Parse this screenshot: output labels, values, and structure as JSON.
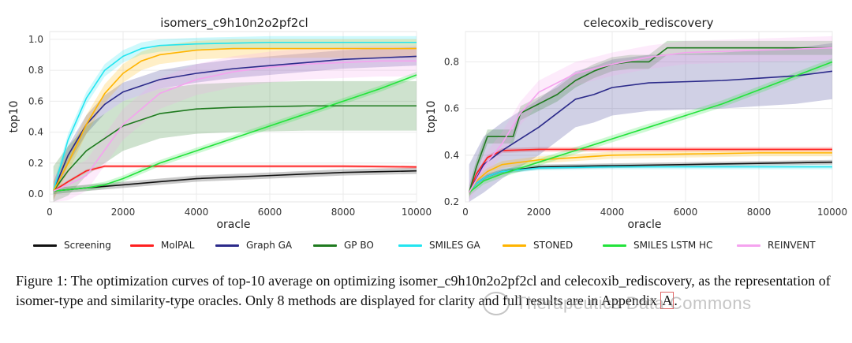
{
  "chart_data": [
    {
      "type": "line",
      "title": "isomers_c9h10n2o2pf2cl",
      "xlabel": "oracle",
      "ylabel": "top10",
      "xlim": [
        0,
        10000
      ],
      "ylim": [
        -0.05,
        1.05
      ],
      "xticks": [
        0,
        2000,
        4000,
        6000,
        8000,
        10000
      ],
      "yticks": [
        0.0,
        0.2,
        0.4,
        0.6,
        0.8,
        1.0
      ],
      "ytick_labels": [
        "0.0",
        "0.2",
        "0.4",
        "0.6",
        "0.8",
        "1.0"
      ],
      "grid": true,
      "series": [
        {
          "name": "Screening",
          "x": [
            100,
            1000,
            2000,
            3000,
            4000,
            5000,
            6000,
            7000,
            8000,
            9000,
            10000
          ],
          "y": [
            0.02,
            0.04,
            0.06,
            0.08,
            0.1,
            0.11,
            0.12,
            0.13,
            0.14,
            0.145,
            0.15
          ],
          "band": 0.02
        },
        {
          "name": "MolPAL",
          "x": [
            100,
            500,
            1000,
            1500,
            2000,
            4000,
            6000,
            8000,
            10000
          ],
          "y": [
            0.02,
            0.08,
            0.15,
            0.18,
            0.18,
            0.18,
            0.18,
            0.18,
            0.175
          ],
          "band": 0.01
        },
        {
          "name": "Graph GA",
          "x": [
            100,
            500,
            1000,
            1500,
            2000,
            3000,
            4000,
            5000,
            6000,
            7000,
            8000,
            9000,
            10000
          ],
          "y": [
            0.02,
            0.25,
            0.45,
            0.58,
            0.66,
            0.74,
            0.78,
            0.81,
            0.83,
            0.85,
            0.87,
            0.88,
            0.89
          ],
          "band": 0.06
        },
        {
          "name": "GP BO",
          "x": [
            100,
            500,
            1000,
            1500,
            2000,
            3000,
            4000,
            5000,
            6000,
            7000,
            8000,
            9000,
            10000
          ],
          "y": [
            0.02,
            0.15,
            0.28,
            0.36,
            0.44,
            0.52,
            0.55,
            0.56,
            0.565,
            0.57,
            0.57,
            0.57,
            0.57
          ],
          "band": 0.16
        },
        {
          "name": "SMILES GA",
          "x": [
            100,
            500,
            1000,
            1500,
            2000,
            2500,
            3000,
            4000,
            5000,
            6000,
            8000,
            10000
          ],
          "y": [
            0.02,
            0.35,
            0.62,
            0.8,
            0.89,
            0.94,
            0.96,
            0.97,
            0.975,
            0.98,
            0.98,
            0.98
          ],
          "band": 0.04
        },
        {
          "name": "STONED",
          "x": [
            100,
            500,
            1000,
            1500,
            2000,
            2500,
            3000,
            4000,
            5000,
            6000,
            8000,
            10000
          ],
          "y": [
            0.02,
            0.2,
            0.45,
            0.65,
            0.78,
            0.86,
            0.9,
            0.93,
            0.94,
            0.94,
            0.94,
            0.94
          ],
          "band": 0.06
        },
        {
          "name": "SMILES LSTM HC",
          "x": [
            100,
            1000,
            1500,
            2000,
            3000,
            4000,
            5000,
            6000,
            7000,
            8000,
            9000,
            10000
          ],
          "y": [
            0.02,
            0.04,
            0.06,
            0.1,
            0.2,
            0.28,
            0.36,
            0.44,
            0.52,
            0.6,
            0.68,
            0.77
          ],
          "band": 0.02
        },
        {
          "name": "REINVENT",
          "x": [
            100,
            500,
            1000,
            2000,
            3000,
            4000,
            5000,
            6000,
            7000,
            8000,
            9000,
            10000
          ],
          "y": [
            0.02,
            0.06,
            0.12,
            0.45,
            0.65,
            0.74,
            0.79,
            0.82,
            0.84,
            0.85,
            0.86,
            0.86
          ],
          "band": 0.1
        }
      ]
    },
    {
      "type": "line",
      "title": "celecoxib_rediscovery",
      "xlabel": "oracle",
      "ylabel": "top10",
      "xlim": [
        0,
        10000
      ],
      "ylim": [
        0.2,
        0.93
      ],
      "xticks": [
        0,
        2000,
        4000,
        6000,
        8000,
        10000
      ],
      "yticks": [
        0.2,
        0.4,
        0.6,
        0.8
      ],
      "ytick_labels": [
        "0.2",
        "0.4",
        "0.6",
        "0.8"
      ],
      "grid": true,
      "series": [
        {
          "name": "Screening",
          "x": [
            100,
            300,
            600,
            1000,
            2000,
            4000,
            6000,
            8000,
            10000
          ],
          "y": [
            0.24,
            0.28,
            0.31,
            0.33,
            0.35,
            0.355,
            0.36,
            0.365,
            0.37
          ],
          "band": 0.01
        },
        {
          "name": "MolPAL",
          "x": [
            100,
            300,
            600,
            1000,
            2000,
            4000,
            6000,
            8000,
            10000
          ],
          "y": [
            0.24,
            0.32,
            0.39,
            0.42,
            0.425,
            0.425,
            0.425,
            0.425,
            0.425
          ],
          "band": 0.01
        },
        {
          "name": "Graph GA",
          "x": [
            100,
            500,
            1000,
            1500,
            2000,
            2500,
            3000,
            3500,
            4000,
            5000,
            6000,
            7000,
            8000,
            9000,
            10000
          ],
          "y": [
            0.24,
            0.36,
            0.42,
            0.47,
            0.52,
            0.58,
            0.64,
            0.66,
            0.69,
            0.71,
            0.715,
            0.72,
            0.73,
            0.74,
            0.76
          ],
          "band": 0.12
        },
        {
          "name": "GP BO",
          "x": [
            100,
            300,
            600,
            1000,
            1300,
            1500,
            2000,
            2500,
            3000,
            3500,
            4000,
            4500,
            5000,
            5500,
            6000,
            8000,
            10000
          ],
          "y": [
            0.24,
            0.35,
            0.48,
            0.48,
            0.48,
            0.58,
            0.62,
            0.66,
            0.72,
            0.76,
            0.79,
            0.8,
            0.8,
            0.86,
            0.86,
            0.86,
            0.86
          ],
          "band": 0.03
        },
        {
          "name": "SMILES GA",
          "x": [
            100,
            300,
            600,
            1000,
            2000,
            4000,
            6000,
            8000,
            10000
          ],
          "y": [
            0.24,
            0.28,
            0.31,
            0.33,
            0.345,
            0.35,
            0.35,
            0.35,
            0.35
          ],
          "band": 0.01
        },
        {
          "name": "STONED",
          "x": [
            100,
            300,
            600,
            1000,
            2000,
            3000,
            4000,
            6000,
            8000,
            10000
          ],
          "y": [
            0.24,
            0.29,
            0.33,
            0.36,
            0.38,
            0.39,
            0.4,
            0.405,
            0.41,
            0.41
          ],
          "band": 0.015
        },
        {
          "name": "SMILES LSTM HC",
          "x": [
            100,
            500,
            1000,
            2000,
            3000,
            4000,
            5000,
            6000,
            7000,
            8000,
            9000,
            10000
          ],
          "y": [
            0.24,
            0.29,
            0.32,
            0.37,
            0.42,
            0.47,
            0.52,
            0.57,
            0.62,
            0.68,
            0.74,
            0.8
          ],
          "band": 0.015
        },
        {
          "name": "REINVENT",
          "x": [
            100,
            500,
            1000,
            1500,
            2000,
            3000,
            4000,
            5000,
            6000,
            8000,
            10000
          ],
          "y": [
            0.24,
            0.35,
            0.45,
            0.58,
            0.67,
            0.75,
            0.79,
            0.82,
            0.84,
            0.85,
            0.86
          ],
          "band": 0.05
        }
      ]
    }
  ],
  "legend": {
    "items": [
      {
        "name": "Screening",
        "color": "#111111"
      },
      {
        "name": "MolPAL",
        "color": "#ff2020"
      },
      {
        "name": "Graph GA",
        "color": "#2b2a8a"
      },
      {
        "name": "GP BO",
        "color": "#1f7a1f"
      },
      {
        "name": "SMILES GA",
        "color": "#22e5f0"
      },
      {
        "name": "STONED",
        "color": "#ffb400"
      },
      {
        "name": "SMILES LSTM HC",
        "color": "#22e33a"
      },
      {
        "name": "REINVENT",
        "color": "#f5a3ef"
      }
    ]
  },
  "caption": {
    "text": "Figure 1: The optimization curves of top-10 average on optimizing isomer_c9h10n2o2pf2cl and celecoxib_rediscovery, as the representation of isomer-type and similarity-type oracles. Only 8 methods are displayed for clarity and full results are in Appendix ",
    "link": "A",
    "end": "."
  },
  "watermark": {
    "text": "Therapeutics Data Commons"
  }
}
